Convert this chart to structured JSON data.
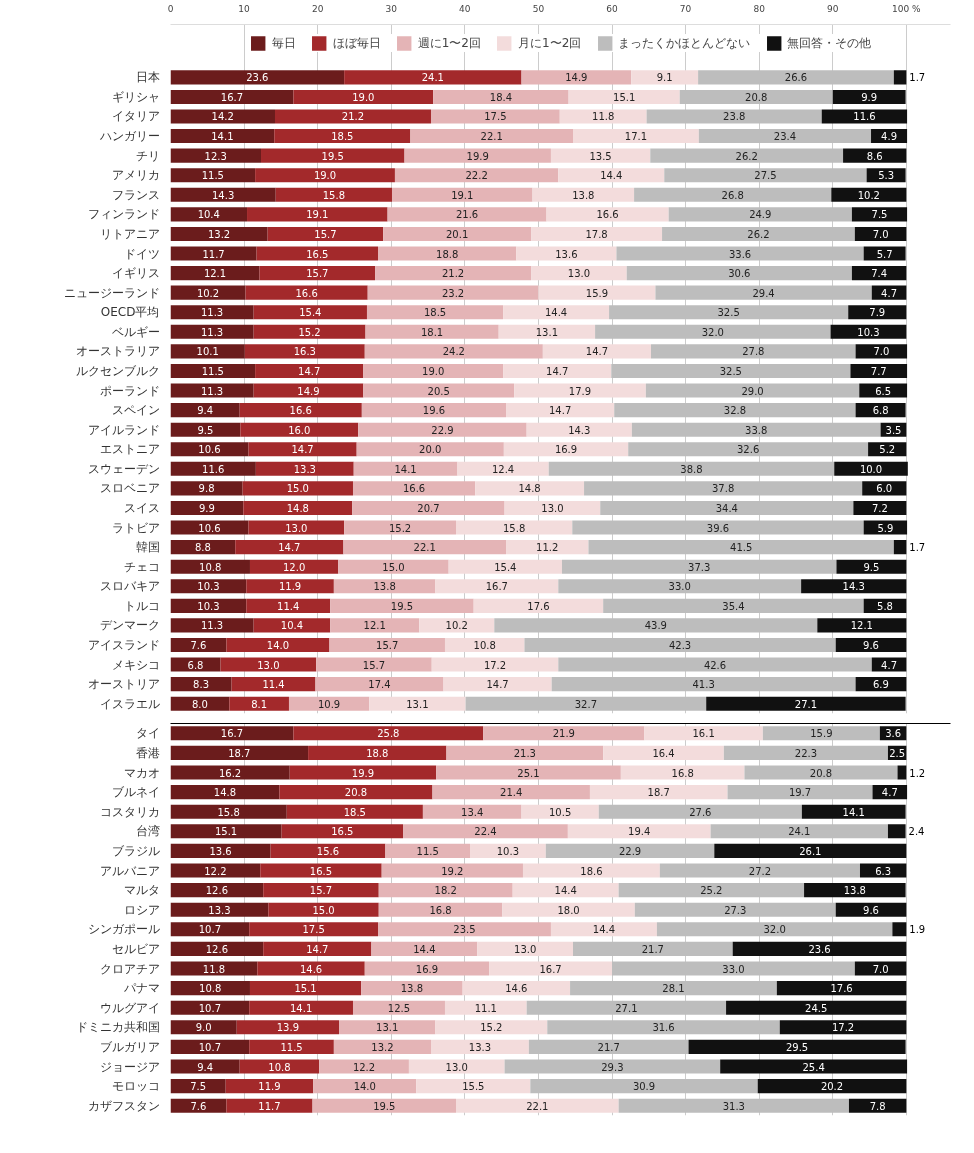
{
  "chart_data": [
    {
      "type": "bar",
      "orientation": "horizontal",
      "stacked": true,
      "legend": "top",
      "grid": "x",
      "xlim": [
        0,
        106
      ],
      "xticks": [
        0,
        10,
        20,
        30,
        40,
        50,
        60,
        70,
        80,
        90,
        {
          "value": 100,
          "label": "100 %"
        }
      ],
      "categories": [
        "日本",
        "ギリシャ",
        "イタリア",
        "ハンガリー",
        "チリ",
        "アメリカ",
        "フランス",
        "フィンランド",
        "リトアニア",
        "ドイツ",
        "イギリス",
        "ニュージーランド",
        "OECD平均",
        "ベルギー",
        "オーストラリア",
        "ルクセンブルク",
        "ポーランド",
        "スペイン",
        "アイルランド",
        "エストニア",
        "スウェーデン",
        "スロベニア",
        "スイス",
        "ラトビア",
        "韓国",
        "チェコ",
        "スロバキア",
        "トルコ",
        "デンマーク",
        "アイスランド",
        "メキシコ",
        "オーストリア",
        "イスラエル"
      ],
      "series": [
        {
          "name": "毎日",
          "color": "#6b1c1c",
          "values": [
            23.6,
            16.7,
            14.2,
            14.1,
            12.3,
            11.5,
            14.3,
            10.4,
            13.2,
            11.7,
            12.1,
            10.2,
            11.3,
            11.3,
            10.1,
            11.5,
            11.3,
            9.4,
            9.5,
            10.6,
            11.6,
            9.8,
            9.9,
            10.6,
            8.8,
            10.8,
            10.3,
            10.3,
            11.3,
            7.6,
            6.8,
            8.3,
            8.0
          ],
          "value_labels": [
            "23.6",
            "16.7",
            "14.2",
            "14.1",
            "12.3",
            "11.5",
            "14.3",
            "10.4",
            "13.2",
            "11.7",
            "12.1",
            "10.2",
            "11.3",
            "11.3",
            "10.1",
            "11.5",
            "11.3",
            "9.4",
            "9.5",
            "10.6",
            "11.6",
            "9.8",
            "9.9",
            "10.6",
            "8.8",
            "10.8",
            "10.3",
            "10.3",
            "11.3",
            "7.6",
            "6.8",
            "8.3",
            "8.0"
          ]
        },
        {
          "name": "ほぼ毎日",
          "color": "#a3292b",
          "values": [
            24.1,
            19.0,
            21.2,
            18.5,
            19.5,
            19.0,
            15.8,
            19.1,
            15.7,
            16.5,
            15.7,
            16.6,
            15.4,
            15.2,
            16.3,
            14.7,
            14.9,
            16.6,
            16.0,
            14.7,
            13.3,
            15.0,
            14.8,
            13.0,
            14.7,
            12.0,
            11.9,
            11.4,
            10.4,
            14.0,
            13.0,
            11.4,
            8.1
          ],
          "value_labels": [
            "24.1",
            "19.0",
            "21.2",
            "18.5",
            "19.5",
            "19.0",
            "15.8",
            "19.1",
            "15.7",
            "16.5",
            "15.7",
            "16.6",
            "15.4",
            "15.2",
            "16.3",
            "14.7",
            "14.9",
            "16.6",
            "16.0",
            "14.7",
            "13.3",
            "15.0",
            "14.8",
            "13.0",
            "14.7",
            "12.0",
            "11.9",
            "11.4",
            "10.4",
            "14.0",
            "13.0",
            "11.4",
            "8.1"
          ]
        },
        {
          "name": "週に1〜2回",
          "color": "#e4b4b6",
          "values": [
            14.9,
            18.4,
            17.5,
            22.1,
            19.9,
            22.2,
            19.1,
            21.6,
            20.1,
            18.8,
            21.2,
            23.2,
            18.5,
            18.1,
            24.2,
            19.0,
            20.5,
            19.6,
            22.9,
            20.0,
            14.1,
            16.6,
            20.7,
            15.2,
            22.1,
            15.0,
            13.8,
            19.5,
            12.1,
            15.7,
            15.7,
            17.4,
            10.9
          ],
          "value_labels": [
            "14.9",
            "18.4",
            "17.5",
            "22.1",
            "19.9",
            "22.2",
            "19.1",
            "21.6",
            "20.1",
            "18.8",
            "21.2",
            "23.2",
            "18.5",
            "18.1",
            "24.2",
            "19.0",
            "20.5",
            "19.6",
            "22.9",
            "20.0",
            "14.1",
            "16.6",
            "20.7",
            "15.2",
            "22.1",
            "15.0",
            "13.8",
            "19.5",
            "12.1",
            "15.7",
            "15.7",
            "17.4",
            "10.9"
          ]
        },
        {
          "name": "月に1〜2回",
          "color": "#f3dcdc",
          "values": [
            9.1,
            15.1,
            11.8,
            17.1,
            13.5,
            14.4,
            13.8,
            16.6,
            17.8,
            13.6,
            13.0,
            15.9,
            14.4,
            13.1,
            14.7,
            14.7,
            17.9,
            14.7,
            14.3,
            16.9,
            12.4,
            14.8,
            13.0,
            15.8,
            11.2,
            15.4,
            16.7,
            17.6,
            10.2,
            10.8,
            17.2,
            14.7,
            13.1
          ],
          "value_labels": [
            "9.1",
            "15.1",
            "11.8",
            "17.1",
            "13.5",
            "14.4",
            "13.8",
            "16.6",
            "17.8",
            "13.6",
            "13.0",
            "15.9",
            "14.4",
            "13.1",
            "14.7",
            "14.7",
            "17.9",
            "14.7",
            "14.3",
            "16.9",
            "12.4",
            "14.8",
            "13.0",
            "15.8",
            "11.2",
            "15.4",
            "16.7",
            "17.6",
            "10.2",
            "10.8",
            "17.2",
            "14.7",
            "13.1"
          ]
        },
        {
          "name": "まったくかほとんどない",
          "color": "#bdbdbd",
          "values": [
            26.6,
            20.8,
            23.8,
            23.4,
            26.2,
            27.5,
            26.8,
            24.9,
            26.2,
            33.6,
            30.6,
            29.4,
            32.5,
            32.0,
            27.8,
            32.5,
            29.0,
            32.8,
            33.8,
            32.6,
            38.8,
            37.8,
            34.4,
            39.6,
            41.5,
            37.3,
            33.0,
            35.4,
            43.9,
            42.3,
            42.6,
            41.3,
            32.7
          ],
          "value_labels": [
            "26.6",
            "20.8",
            "23.8",
            "23.4",
            "26.2",
            "27.5",
            "26.8",
            "24.9",
            "26.2",
            "33.6",
            "30.6",
            "29.4",
            "32.5",
            "32.0",
            "27.8",
            "32.5",
            "29.0",
            "32.8",
            "33.8",
            "32.6",
            "38.8",
            "37.8",
            "34.4",
            "39.6",
            "41.5",
            "37.3",
            "33.0",
            "35.4",
            "43.9",
            "42.3",
            "42.6",
            "41.3",
            "32.7"
          ]
        },
        {
          "name": "無回答・その他",
          "color": "#111111",
          "values": [
            1.7,
            9.9,
            11.6,
            4.9,
            8.6,
            5.3,
            10.2,
            7.5,
            7.0,
            5.7,
            7.4,
            4.7,
            7.9,
            10.3,
            7.0,
            7.7,
            6.5,
            6.8,
            3.5,
            5.2,
            10.0,
            6.0,
            7.2,
            5.9,
            1.7,
            9.5,
            14.3,
            5.8,
            12.1,
            9.6,
            4.7,
            6.9,
            27.1
          ],
          "value_labels": [
            "1.7",
            "9.9",
            "11.6",
            "4.9",
            "8.6",
            "5.3",
            "10.2",
            "7.5",
            "7.0",
            "5.7",
            "7.4",
            "4.7",
            "7.9",
            "10.3",
            "7.0",
            "7.7",
            "6.5",
            "6.8",
            "3.5",
            "5.2",
            "10.0",
            "6.0",
            "7.2",
            "5.9",
            "1.7",
            "9.5",
            "14.3",
            "5.8",
            "12.1",
            "9.6",
            "4.7",
            "6.9",
            "27.1"
          ]
        }
      ]
    },
    {
      "type": "bar",
      "orientation": "horizontal",
      "stacked": true,
      "grid": "x",
      "tick_labels": "y",
      "xlim": [
        0,
        106
      ],
      "xticks": [
        0,
        10,
        20,
        30,
        40,
        50,
        60,
        70,
        80,
        90,
        100
      ],
      "categories": [
        "タイ",
        "香港",
        "マカオ",
        "ブルネイ",
        "コスタリカ",
        "台湾",
        "ブラジル",
        "アルバニア",
        "マルタ",
        "ロシア",
        "シンガポール",
        "セルビア",
        "クロアチア",
        "パナマ",
        "ウルグアイ",
        "ドミニカ共和国",
        "ブルガリア",
        "ジョージア",
        "モロッコ",
        "カザフスタン"
      ],
      "series": [
        {
          "color": "#6b1c1c",
          "values": [
            16.7,
            18.7,
            16.2,
            14.8,
            15.8,
            15.1,
            13.6,
            12.2,
            12.6,
            13.3,
            10.7,
            12.6,
            11.8,
            10.8,
            10.7,
            9.0,
            10.7,
            9.4,
            7.5,
            7.6
          ],
          "value_labels": [
            "16.7",
            "18.7",
            "16.2",
            "14.8",
            "15.8",
            "15.1",
            "13.6",
            "12.2",
            "12.6",
            "13.3",
            "10.7",
            "12.6",
            "11.8",
            "10.8",
            "10.7",
            "9.0",
            "10.7",
            "9.4",
            "7.5",
            "7.6"
          ]
        },
        {
          "color": "#a3292b",
          "values": [
            25.8,
            18.8,
            19.9,
            20.8,
            18.5,
            16.5,
            15.6,
            16.5,
            15.7,
            15.0,
            17.5,
            14.7,
            14.6,
            15.1,
            14.1,
            13.9,
            11.5,
            10.8,
            11.9,
            11.7
          ],
          "value_labels": [
            "25.8",
            "18.8",
            "19.9",
            "20.8",
            "18.5",
            "16.5",
            "15.6",
            "16.5",
            "15.7",
            "15.0",
            "17.5",
            "14.7",
            "14.6",
            "15.1",
            "14.1",
            "13.9",
            "11.5",
            "10.8",
            "11.9",
            "11.7"
          ]
        },
        {
          "color": "#e4b4b6",
          "values": [
            21.9,
            21.3,
            25.1,
            21.4,
            13.4,
            22.4,
            11.5,
            19.2,
            18.2,
            16.8,
            23.5,
            14.4,
            16.9,
            13.8,
            12.5,
            13.1,
            13.2,
            12.2,
            14.0,
            19.5
          ],
          "value_labels": [
            "21.9",
            "21.3",
            "25.1",
            "21.4",
            "13.4",
            "22.4",
            "11.5",
            "19.2",
            "18.2",
            "16.8",
            "23.5",
            "14.4",
            "16.9",
            "13.8",
            "12.5",
            "13.1",
            "13.2",
            "12.2",
            "14.0",
            "19.5"
          ]
        },
        {
          "color": "#f3dcdc",
          "values": [
            16.1,
            16.4,
            16.8,
            18.7,
            10.5,
            19.4,
            10.3,
            18.6,
            14.4,
            18.0,
            14.4,
            13.0,
            16.7,
            14.6,
            11.1,
            15.2,
            13.3,
            13.0,
            15.5,
            22.1
          ],
          "value_labels": [
            "16.1",
            "16.4",
            "16.8",
            "18.7",
            "10.5",
            "19.4",
            "10.3",
            "18.6",
            "14.4",
            "18.0",
            "14.4",
            "13.0",
            "16.7",
            "14.6",
            "11.1",
            "15.2",
            "13.3",
            "13.0",
            "15.5",
            "22.1"
          ]
        },
        {
          "color": "#bdbdbd",
          "values": [
            15.9,
            22.3,
            20.8,
            19.7,
            27.6,
            24.1,
            22.9,
            27.2,
            25.2,
            27.3,
            32.0,
            21.7,
            33.0,
            28.1,
            27.1,
            31.6,
            21.7,
            29.3,
            30.9,
            31.3
          ],
          "value_labels": [
            "15.9",
            "22.3",
            "20.8",
            "19.7",
            "27.6",
            "24.1",
            "22.9",
            "27.2",
            "25.2",
            "27.3",
            "32.0",
            "21.7",
            "33.0",
            "28.1",
            "27.1",
            "31.6",
            "21.7",
            "29.3",
            "30.9",
            "31.3"
          ]
        },
        {
          "color": "#111111",
          "values": [
            3.6,
            2.5,
            1.2,
            4.7,
            14.1,
            2.4,
            26.1,
            6.3,
            13.8,
            9.6,
            1.9,
            23.6,
            7.0,
            17.6,
            24.5,
            17.2,
            29.5,
            25.4,
            20.2,
            7.8
          ],
          "value_labels": [
            "3.6",
            "2.5",
            "1.2",
            "4.7",
            "14.1",
            "2.4",
            "26.1",
            "6.3",
            "13.8",
            "9.6",
            "1.9",
            "23.6",
            "7.0",
            "17.6",
            "24.5",
            "17.2",
            "29.5",
            "25.4",
            "20.2",
            "7.8"
          ]
        }
      ]
    }
  ]
}
